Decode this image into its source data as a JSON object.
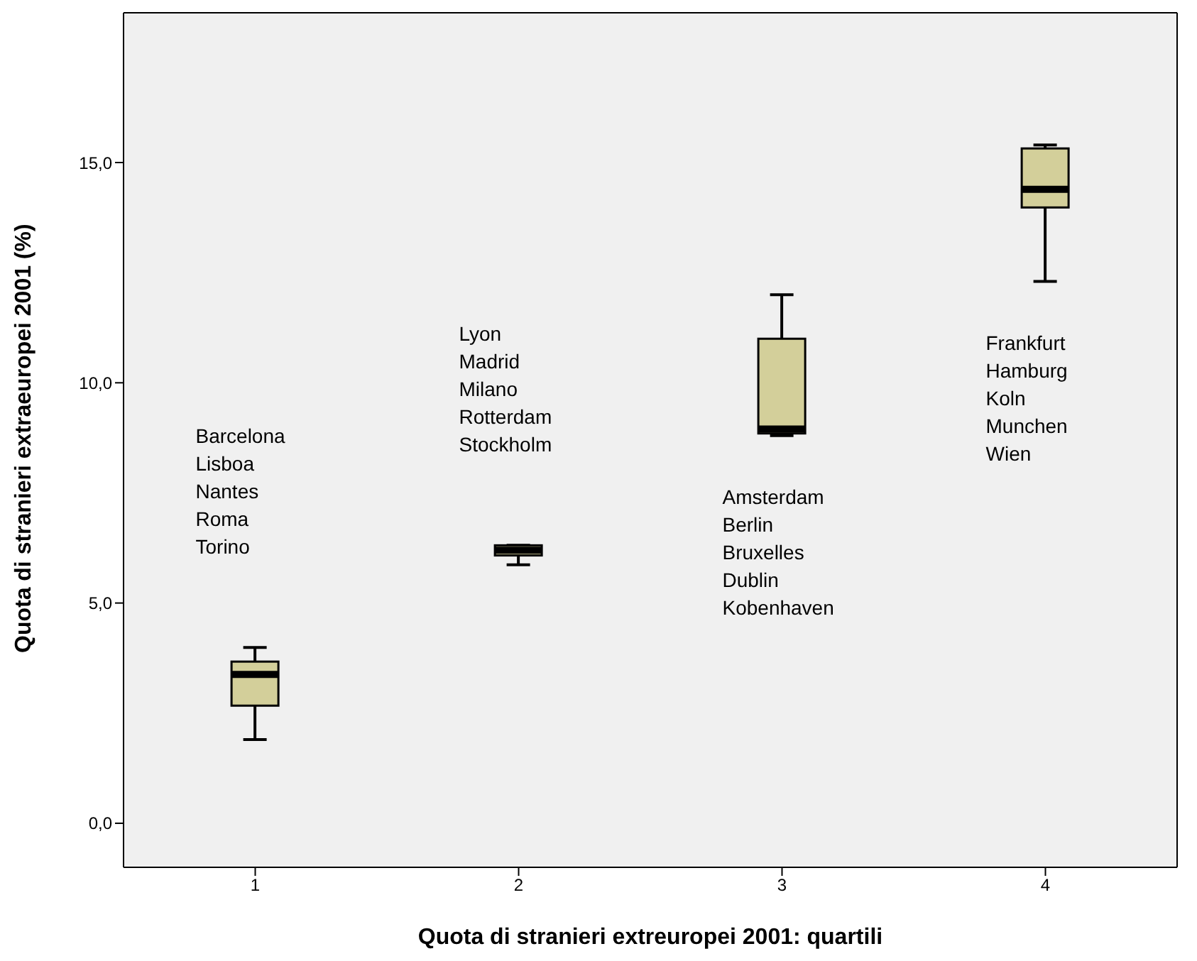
{
  "chart_data": {
    "type": "box",
    "xlabel": "Quota di stranieri extreuropei 2001: quartili",
    "ylabel": "Quota di stranieri extraeuropei 2001 (%)",
    "categories": [
      "1",
      "2",
      "3",
      "4"
    ],
    "boxes": [
      {
        "low": 1.9,
        "q1": 2.67,
        "median": 3.38,
        "q3": 3.67,
        "high": 3.99
      },
      {
        "low": 5.87,
        "q1": 6.08,
        "median": 6.2,
        "q3": 6.31,
        "high": 6.31
      },
      {
        "low": 8.8,
        "q1": 8.85,
        "median": 8.95,
        "q3": 11.0,
        "high": 12.0
      },
      {
        "low": 12.3,
        "q1": 13.98,
        "median": 14.39,
        "q3": 15.32,
        "high": 15.4
      }
    ],
    "color": "#d3cf9a",
    "ylim": [
      -1,
      18.4
    ],
    "yticks": [
      {
        "value": 0,
        "label": "0,0"
      },
      {
        "value": 5,
        "label": "5,0"
      },
      {
        "value": 10,
        "label": "10,0"
      },
      {
        "value": 15,
        "label": "15,0"
      }
    ],
    "annotations": [
      "Barcelona\nLisboa\nNantes\nRoma\nTorino",
      "Lyon\nMadrid\nMilano\nRotterdam\nStockholm",
      "Amsterdam\nBerlin\nBruxelles\nDublin\nKobenhaven",
      "Frankfurt\nHamburg\nKoln\nMunchen\nWien"
    ]
  }
}
